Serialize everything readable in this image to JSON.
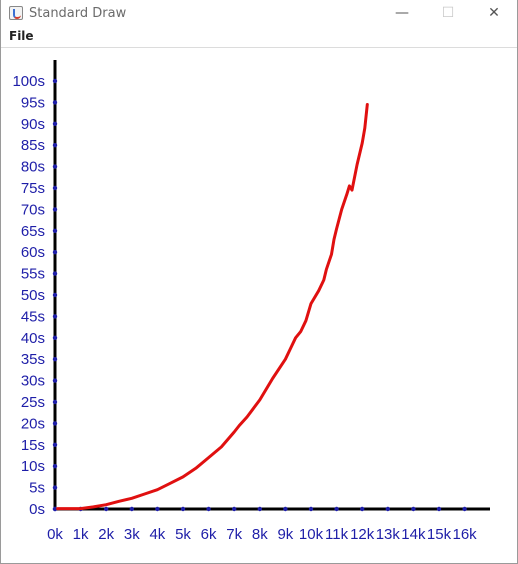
{
  "window": {
    "title": "Standard Draw",
    "minimize_glyph": "—",
    "maximize_glyph": "☐",
    "close_glyph": "✕",
    "icon": "java-cup-icon"
  },
  "menu": {
    "file_label": "File"
  },
  "colors": {
    "curve": "#e01010",
    "axis": "#000000",
    "ticks": "#1e1ea8"
  },
  "chart_data": {
    "type": "line",
    "title": "",
    "xlabel": "",
    "ylabel": "",
    "xlim": [
      0,
      17
    ],
    "ylim": [
      0,
      100
    ],
    "x_ticks": [
      0,
      1,
      2,
      3,
      4,
      5,
      6,
      7,
      8,
      9,
      10,
      11,
      12,
      13,
      14,
      15,
      16
    ],
    "x_tick_labels": [
      "0k",
      "1k",
      "2k",
      "3k",
      "4k",
      "5k",
      "6k",
      "7k",
      "8k",
      "9k",
      "10k",
      "11k",
      "12k",
      "13k",
      "14k",
      "15k",
      "16k"
    ],
    "y_ticks": [
      0,
      5,
      10,
      15,
      20,
      25,
      30,
      35,
      40,
      45,
      50,
      55,
      60,
      65,
      70,
      75,
      80,
      85,
      90,
      95,
      100
    ],
    "y_tick_labels": [
      "0s",
      "5s",
      "10s",
      "15s",
      "20s",
      "25s",
      "30s",
      "35s",
      "40s",
      "45s",
      "50s",
      "55s",
      "60s",
      "65s",
      "70s",
      "75s",
      "80s",
      "85s",
      "90s",
      "95s",
      "100s"
    ],
    "series": [
      {
        "x": [
          0.1,
          0.5,
          1.0,
          1.5,
          2.0,
          2.5,
          3.0,
          3.5,
          4.0,
          4.5,
          5.0,
          5.5,
          6.0,
          6.5,
          7.0,
          7.2,
          7.5,
          8.0,
          8.5,
          9.0,
          9.2,
          9.4,
          9.6,
          9.8,
          10.0,
          10.3,
          10.5,
          10.6,
          10.8,
          10.9,
          11.0,
          11.2,
          11.4,
          11.5,
          11.6,
          11.8,
          12.0,
          12.1,
          12.2
        ],
        "y": [
          0.1,
          0.1,
          0.1,
          0.5,
          1.0,
          1.8,
          2.5,
          3.5,
          4.5,
          6.0,
          7.5,
          9.5,
          12.0,
          14.5,
          18.0,
          19.5,
          21.5,
          25.5,
          30.5,
          35.0,
          37.5,
          40.0,
          41.5,
          44.0,
          48.0,
          51.0,
          53.5,
          56.0,
          59.5,
          63.0,
          65.5,
          70.0,
          73.5,
          75.5,
          74.5,
          80.5,
          85.5,
          89.0,
          94.5
        ]
      }
    ]
  }
}
